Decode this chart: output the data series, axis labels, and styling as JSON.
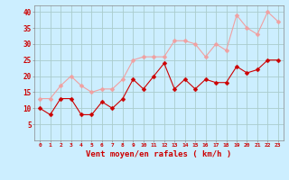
{
  "x": [
    0,
    1,
    2,
    3,
    4,
    5,
    6,
    7,
    8,
    9,
    10,
    11,
    12,
    13,
    14,
    15,
    16,
    17,
    18,
    19,
    20,
    21,
    22,
    23
  ],
  "wind_avg": [
    10,
    8,
    13,
    13,
    8,
    8,
    12,
    10,
    13,
    19,
    16,
    20,
    24,
    16,
    19,
    16,
    19,
    18,
    18,
    23,
    21,
    22,
    25,
    25
  ],
  "wind_gust": [
    13,
    13,
    17,
    20,
    17,
    15,
    16,
    16,
    19,
    25,
    26,
    26,
    26,
    31,
    31,
    30,
    26,
    30,
    28,
    39,
    35,
    33,
    40,
    37
  ],
  "avg_color": "#cc0000",
  "gust_color": "#f0a0a0",
  "background_color": "#cceeff",
  "grid_color": "#aacccc",
  "xlabel": "Vent moyen/en rafales ( km/h )",
  "xlabel_color": "#cc0000",
  "tick_color": "#cc0000",
  "ylim": [
    0,
    42
  ],
  "yticks": [
    5,
    10,
    15,
    20,
    25,
    30,
    35,
    40
  ],
  "xlim": [
    -0.5,
    23.5
  ]
}
